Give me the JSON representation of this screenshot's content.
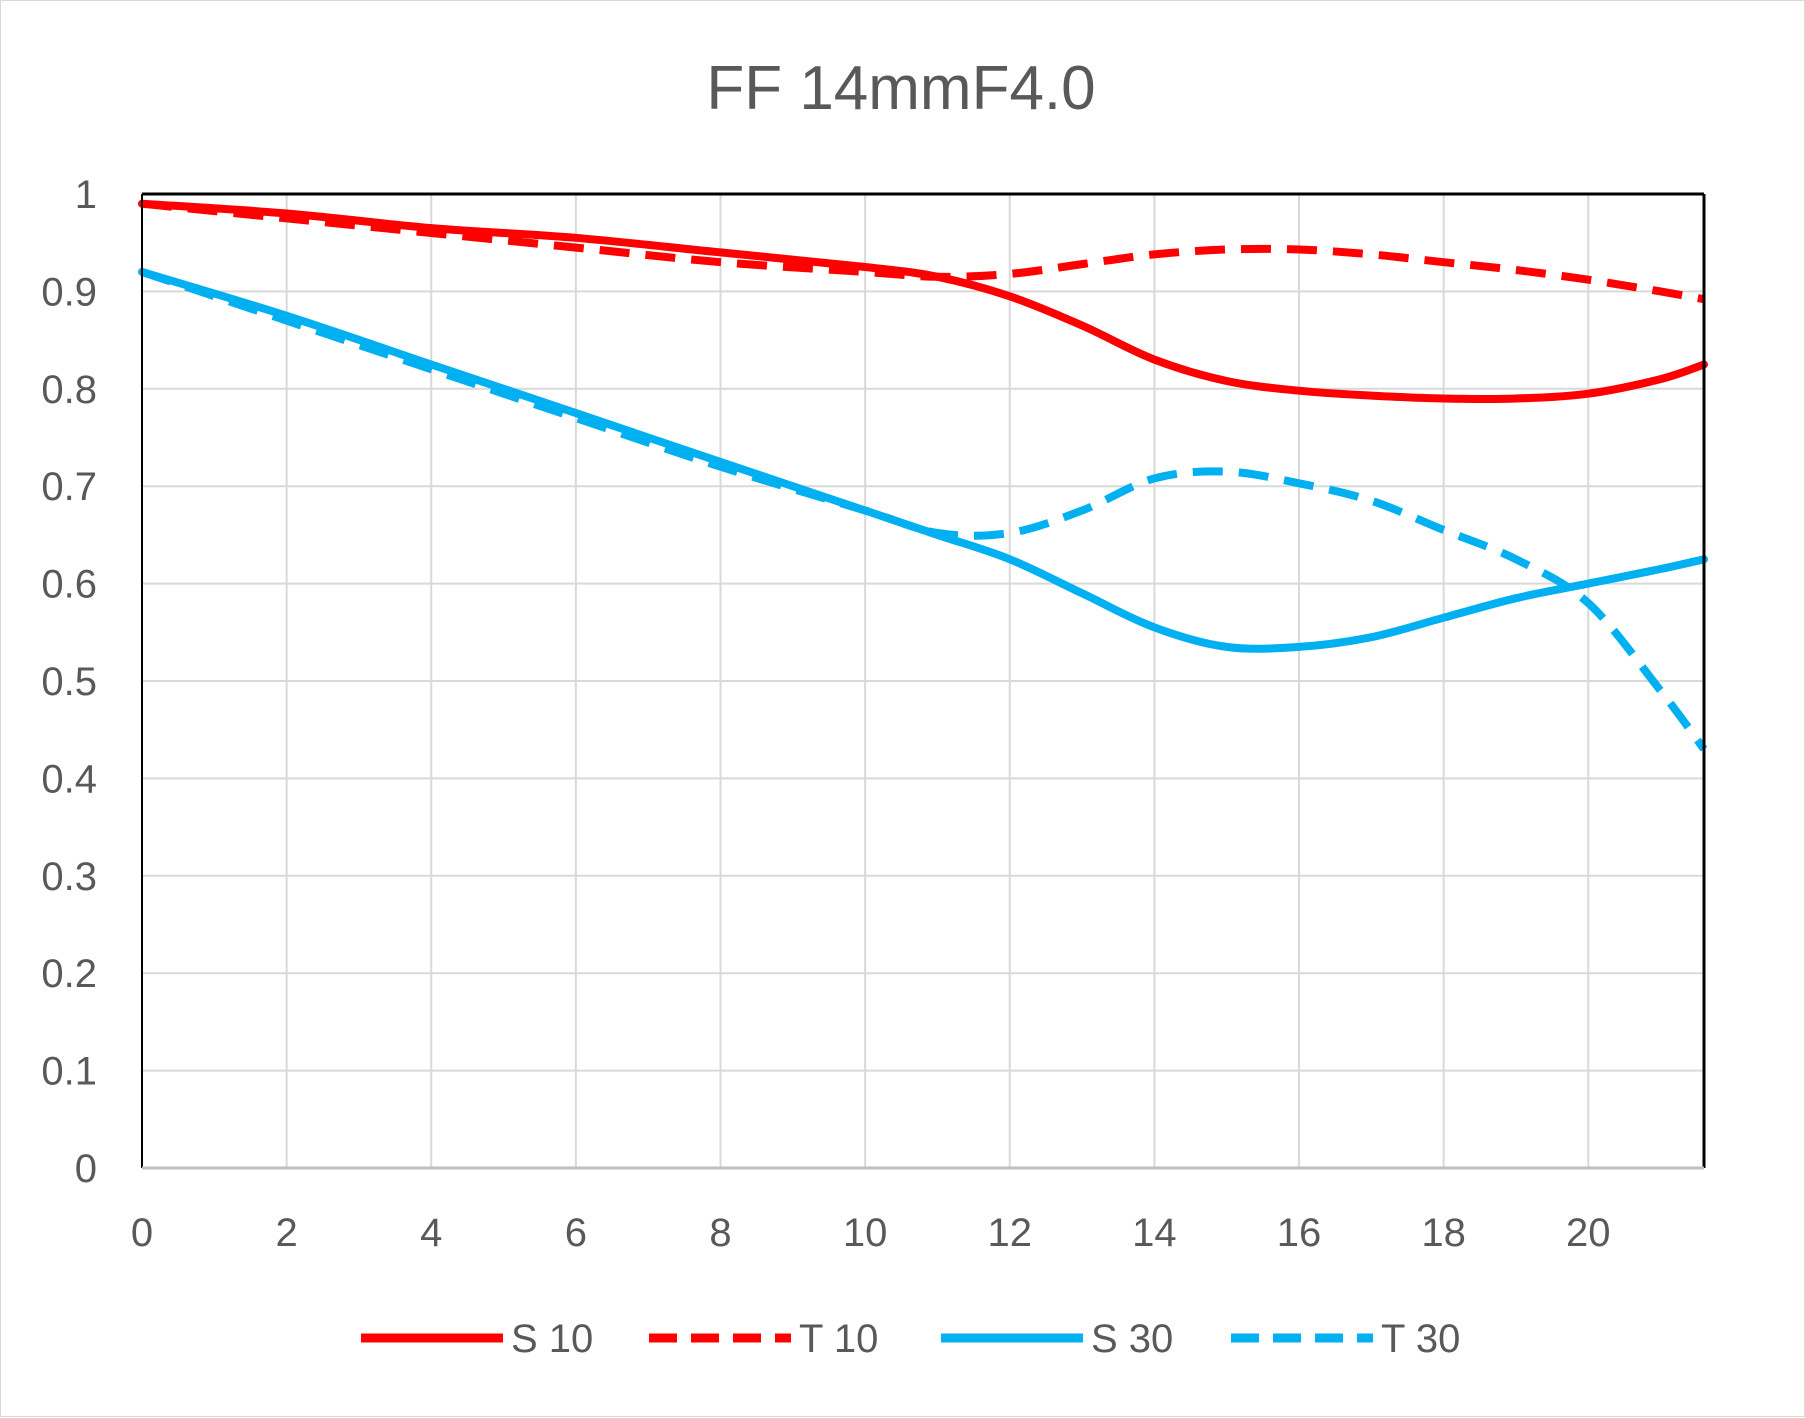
{
  "chart_data": {
    "type": "line",
    "title": "FF 14mmF4.0",
    "xlabel": "",
    "ylabel": "",
    "xlim": [
      0,
      21.6
    ],
    "ylim": [
      0,
      1
    ],
    "x_ticks": [
      "0",
      "2",
      "4",
      "6",
      "8",
      "10",
      "12",
      "14",
      "16",
      "18",
      "20"
    ],
    "y_ticks": [
      "0",
      "0.1",
      "0.2",
      "0.3",
      "0.4",
      "0.5",
      "0.6",
      "0.7",
      "0.8",
      "0.9",
      "1"
    ],
    "grid": true,
    "legend_position": "bottom",
    "series": [
      {
        "name": "S 10",
        "color": "#ff0000",
        "dash": "solid",
        "x": [
          0,
          2,
          4,
          6,
          8,
          10,
          11,
          12,
          13,
          14,
          15,
          16,
          17,
          18,
          19,
          20,
          21,
          21.6
        ],
        "y": [
          0.99,
          0.98,
          0.965,
          0.955,
          0.94,
          0.925,
          0.915,
          0.895,
          0.865,
          0.83,
          0.808,
          0.798,
          0.793,
          0.79,
          0.79,
          0.795,
          0.81,
          0.825
        ]
      },
      {
        "name": "T 10",
        "color": "#ff0000",
        "dash": "dashed",
        "x": [
          0,
          2,
          4,
          6,
          8,
          10,
          11,
          12,
          13,
          14,
          15,
          16,
          17,
          18,
          19,
          20,
          21,
          21.6
        ],
        "y": [
          0.99,
          0.975,
          0.96,
          0.945,
          0.93,
          0.92,
          0.915,
          0.918,
          0.928,
          0.938,
          0.943,
          0.943,
          0.938,
          0.93,
          0.922,
          0.912,
          0.9,
          0.892
        ]
      },
      {
        "name": "S 30",
        "color": "#00b0f0",
        "dash": "solid",
        "x": [
          0,
          2,
          4,
          6,
          8,
          10,
          11,
          12,
          13,
          14,
          15,
          16,
          17,
          18,
          19,
          20,
          21,
          21.6
        ],
        "y": [
          0.92,
          0.875,
          0.825,
          0.775,
          0.725,
          0.675,
          0.65,
          0.625,
          0.59,
          0.555,
          0.535,
          0.535,
          0.545,
          0.565,
          0.585,
          0.6,
          0.615,
          0.625
        ]
      },
      {
        "name": "T 30",
        "color": "#00b0f0",
        "dash": "dashed",
        "x": [
          0,
          2,
          4,
          6,
          8,
          10,
          11,
          12,
          13,
          14,
          15,
          16,
          17,
          18,
          19,
          20,
          21,
          21.6
        ],
        "y": [
          0.92,
          0.87,
          0.82,
          0.77,
          0.72,
          0.675,
          0.652,
          0.652,
          0.675,
          0.708,
          0.715,
          0.703,
          0.685,
          0.655,
          0.625,
          0.58,
          0.49,
          0.43
        ]
      }
    ]
  }
}
